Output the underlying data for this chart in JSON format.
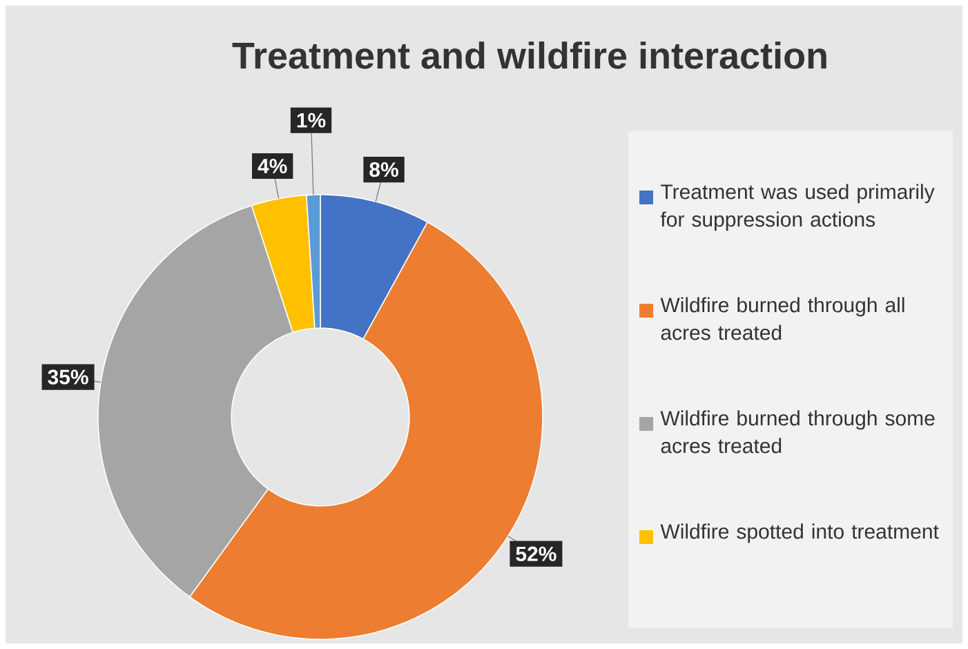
{
  "chart_data": {
    "type": "donut",
    "title": "Treatment and wildfire interaction",
    "categories": [
      "Treatment was used primarily for suppression actions",
      "Wildfire burned through all acres treated",
      "Wildfire burned through some acres treated",
      "Wildfire spotted into treatment",
      null
    ],
    "values": [
      8,
      52,
      35,
      4,
      1
    ],
    "colors": [
      "#4472c4",
      "#ed7d31",
      "#a5a5a5",
      "#ffc000",
      "#5b9bd5"
    ],
    "value_labels": [
      "8%",
      "52%",
      "35%",
      "4%",
      "1%"
    ],
    "legend": "right"
  }
}
